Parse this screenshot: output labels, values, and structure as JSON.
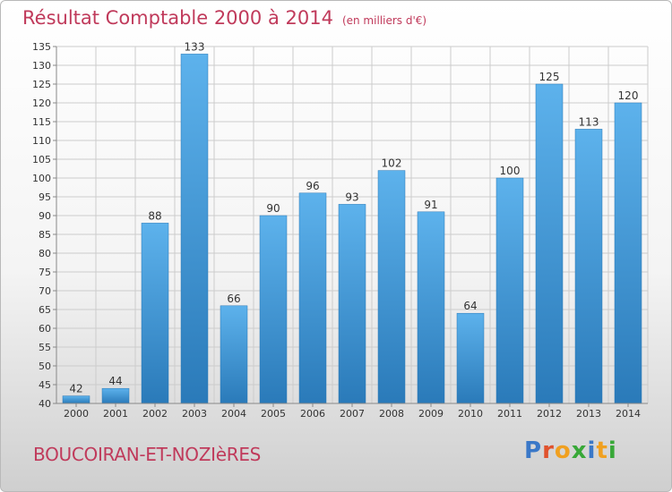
{
  "header": {
    "title": "Résultat Comptable 2000 à 2014",
    "unit": "(en milliers d'€)"
  },
  "footer": {
    "town": "BOUCOIRAN-ET-NOZIèRES",
    "logo_letters": [
      "P",
      "r",
      "o",
      "x",
      "i",
      "t",
      "i"
    ],
    "logo_colors": [
      "#3a78c8",
      "#e0522d",
      "#f0a020",
      "#38a838",
      "#3a78c8",
      "#f0a020",
      "#38a838"
    ]
  },
  "colors": {
    "title": "#c03a5b",
    "bar_light": "#5db2ec",
    "bar_dark": "#2a7ab9",
    "grid": "#cccccc",
    "axis_text": "#333333"
  },
  "chart_data": {
    "type": "bar",
    "title": "Résultat Comptable 2000 à 2014",
    "subtitle": "(en milliers d'€)",
    "categories": [
      "2000",
      "2001",
      "2002",
      "2003",
      "2004",
      "2005",
      "2006",
      "2007",
      "2008",
      "2009",
      "2010",
      "2011",
      "2012",
      "2013",
      "2014"
    ],
    "values": [
      42,
      44,
      88,
      133,
      66,
      90,
      96,
      93,
      102,
      91,
      64,
      100,
      125,
      113,
      120
    ],
    "ylim": [
      40,
      135
    ],
    "yticks": [
      40,
      45,
      50,
      55,
      60,
      65,
      70,
      75,
      80,
      85,
      90,
      95,
      100,
      105,
      110,
      115,
      120,
      125,
      130,
      135
    ],
    "grid": true,
    "data_labels": true
  }
}
